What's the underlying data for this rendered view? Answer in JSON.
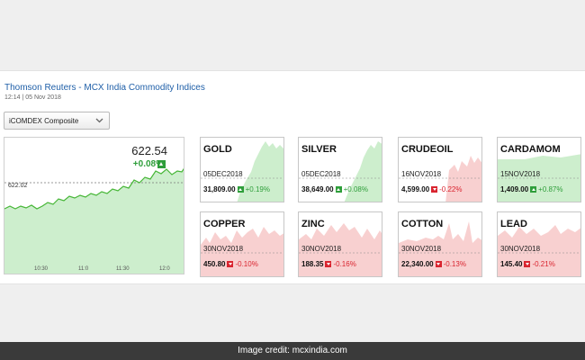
{
  "header": {
    "title": "Thomson Reuters - MCX India Commodity Indices",
    "subtitle": "12:14 | 05 Nov 2018"
  },
  "index_select": {
    "selected": "iCOMDEX Composite",
    "icon": "chevron-down-icon"
  },
  "main_chart": {
    "value": "622.54",
    "change": "+0.08%",
    "prev_close": "622.02",
    "time_ticks": [
      "10:30",
      "11:0",
      "11:30",
      "12:0"
    ]
  },
  "tiles": [
    {
      "name": "GOLD",
      "date": "05DEC2018",
      "price": "31,809.00",
      "change": "+0.19%",
      "direction": "up"
    },
    {
      "name": "SILVER",
      "date": "05DEC2018",
      "price": "38,649.00",
      "change": "+0.08%",
      "direction": "up"
    },
    {
      "name": "CRUDEOIL",
      "date": "16NOV2018",
      "price": "4,599.00",
      "change": "-0.22%",
      "direction": "down"
    },
    {
      "name": "CARDAMOM",
      "date": "15NOV2018",
      "price": "1,409.00",
      "change": "+0.87%",
      "direction": "up"
    },
    {
      "name": "COPPER",
      "date": "30NOV2018",
      "price": "450.80",
      "change": "-0.10%",
      "direction": "down"
    },
    {
      "name": "ZINC",
      "date": "30NOV2018",
      "price": "188.35",
      "change": "-0.16%",
      "direction": "down"
    },
    {
      "name": "COTTON",
      "date": "30NOV2018",
      "price": "22,340.00",
      "change": "-0.13%",
      "direction": "down"
    },
    {
      "name": "LEAD",
      "date": "30NOV2018",
      "price": "145.40",
      "change": "-0.21%",
      "direction": "down"
    }
  ],
  "colors": {
    "up": "#2e9e3a",
    "down": "#d9242f",
    "up_fill": "#cdeecd",
    "down_fill": "#f8d0d0",
    "link": "#1f5fa8"
  },
  "credit": "Image credit: mcxindia.com"
}
